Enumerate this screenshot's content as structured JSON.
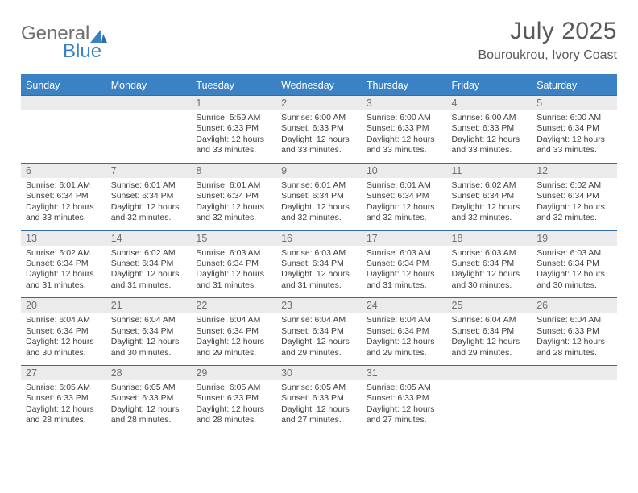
{
  "logo": {
    "part1": "General",
    "part2": "Blue"
  },
  "title": "July 2025",
  "location": "Bouroukrou, Ivory Coast",
  "colors": {
    "brand_blue": "#3b82c4",
    "rule_blue": "#2f6fa9",
    "header_bg": "#3b82c4",
    "header_fg": "#ffffff",
    "daynum_bg": "#ebebeb",
    "text_gray": "#595959",
    "body_text": "#3f3f3f",
    "logo_gray": "#6f6f6f"
  },
  "weekdays": [
    "Sunday",
    "Monday",
    "Tuesday",
    "Wednesday",
    "Thursday",
    "Friday",
    "Saturday"
  ],
  "weeks": [
    [
      {
        "empty": true
      },
      {
        "empty": true
      },
      {
        "day": "1",
        "sunrise": "Sunrise: 5:59 AM",
        "sunset": "Sunset: 6:33 PM",
        "daylight": "Daylight: 12 hours and 33 minutes."
      },
      {
        "day": "2",
        "sunrise": "Sunrise: 6:00 AM",
        "sunset": "Sunset: 6:33 PM",
        "daylight": "Daylight: 12 hours and 33 minutes."
      },
      {
        "day": "3",
        "sunrise": "Sunrise: 6:00 AM",
        "sunset": "Sunset: 6:33 PM",
        "daylight": "Daylight: 12 hours and 33 minutes."
      },
      {
        "day": "4",
        "sunrise": "Sunrise: 6:00 AM",
        "sunset": "Sunset: 6:33 PM",
        "daylight": "Daylight: 12 hours and 33 minutes."
      },
      {
        "day": "5",
        "sunrise": "Sunrise: 6:00 AM",
        "sunset": "Sunset: 6:34 PM",
        "daylight": "Daylight: 12 hours and 33 minutes."
      }
    ],
    [
      {
        "day": "6",
        "sunrise": "Sunrise: 6:01 AM",
        "sunset": "Sunset: 6:34 PM",
        "daylight": "Daylight: 12 hours and 33 minutes."
      },
      {
        "day": "7",
        "sunrise": "Sunrise: 6:01 AM",
        "sunset": "Sunset: 6:34 PM",
        "daylight": "Daylight: 12 hours and 32 minutes."
      },
      {
        "day": "8",
        "sunrise": "Sunrise: 6:01 AM",
        "sunset": "Sunset: 6:34 PM",
        "daylight": "Daylight: 12 hours and 32 minutes."
      },
      {
        "day": "9",
        "sunrise": "Sunrise: 6:01 AM",
        "sunset": "Sunset: 6:34 PM",
        "daylight": "Daylight: 12 hours and 32 minutes."
      },
      {
        "day": "10",
        "sunrise": "Sunrise: 6:01 AM",
        "sunset": "Sunset: 6:34 PM",
        "daylight": "Daylight: 12 hours and 32 minutes."
      },
      {
        "day": "11",
        "sunrise": "Sunrise: 6:02 AM",
        "sunset": "Sunset: 6:34 PM",
        "daylight": "Daylight: 12 hours and 32 minutes."
      },
      {
        "day": "12",
        "sunrise": "Sunrise: 6:02 AM",
        "sunset": "Sunset: 6:34 PM",
        "daylight": "Daylight: 12 hours and 32 minutes."
      }
    ],
    [
      {
        "day": "13",
        "sunrise": "Sunrise: 6:02 AM",
        "sunset": "Sunset: 6:34 PM",
        "daylight": "Daylight: 12 hours and 31 minutes."
      },
      {
        "day": "14",
        "sunrise": "Sunrise: 6:02 AM",
        "sunset": "Sunset: 6:34 PM",
        "daylight": "Daylight: 12 hours and 31 minutes."
      },
      {
        "day": "15",
        "sunrise": "Sunrise: 6:03 AM",
        "sunset": "Sunset: 6:34 PM",
        "daylight": "Daylight: 12 hours and 31 minutes."
      },
      {
        "day": "16",
        "sunrise": "Sunrise: 6:03 AM",
        "sunset": "Sunset: 6:34 PM",
        "daylight": "Daylight: 12 hours and 31 minutes."
      },
      {
        "day": "17",
        "sunrise": "Sunrise: 6:03 AM",
        "sunset": "Sunset: 6:34 PM",
        "daylight": "Daylight: 12 hours and 31 minutes."
      },
      {
        "day": "18",
        "sunrise": "Sunrise: 6:03 AM",
        "sunset": "Sunset: 6:34 PM",
        "daylight": "Daylight: 12 hours and 30 minutes."
      },
      {
        "day": "19",
        "sunrise": "Sunrise: 6:03 AM",
        "sunset": "Sunset: 6:34 PM",
        "daylight": "Daylight: 12 hours and 30 minutes."
      }
    ],
    [
      {
        "day": "20",
        "sunrise": "Sunrise: 6:04 AM",
        "sunset": "Sunset: 6:34 PM",
        "daylight": "Daylight: 12 hours and 30 minutes."
      },
      {
        "day": "21",
        "sunrise": "Sunrise: 6:04 AM",
        "sunset": "Sunset: 6:34 PM",
        "daylight": "Daylight: 12 hours and 30 minutes."
      },
      {
        "day": "22",
        "sunrise": "Sunrise: 6:04 AM",
        "sunset": "Sunset: 6:34 PM",
        "daylight": "Daylight: 12 hours and 29 minutes."
      },
      {
        "day": "23",
        "sunrise": "Sunrise: 6:04 AM",
        "sunset": "Sunset: 6:34 PM",
        "daylight": "Daylight: 12 hours and 29 minutes."
      },
      {
        "day": "24",
        "sunrise": "Sunrise: 6:04 AM",
        "sunset": "Sunset: 6:34 PM",
        "daylight": "Daylight: 12 hours and 29 minutes."
      },
      {
        "day": "25",
        "sunrise": "Sunrise: 6:04 AM",
        "sunset": "Sunset: 6:34 PM",
        "daylight": "Daylight: 12 hours and 29 minutes."
      },
      {
        "day": "26",
        "sunrise": "Sunrise: 6:04 AM",
        "sunset": "Sunset: 6:33 PM",
        "daylight": "Daylight: 12 hours and 28 minutes."
      }
    ],
    [
      {
        "day": "27",
        "sunrise": "Sunrise: 6:05 AM",
        "sunset": "Sunset: 6:33 PM",
        "daylight": "Daylight: 12 hours and 28 minutes."
      },
      {
        "day": "28",
        "sunrise": "Sunrise: 6:05 AM",
        "sunset": "Sunset: 6:33 PM",
        "daylight": "Daylight: 12 hours and 28 minutes."
      },
      {
        "day": "29",
        "sunrise": "Sunrise: 6:05 AM",
        "sunset": "Sunset: 6:33 PM",
        "daylight": "Daylight: 12 hours and 28 minutes."
      },
      {
        "day": "30",
        "sunrise": "Sunrise: 6:05 AM",
        "sunset": "Sunset: 6:33 PM",
        "daylight": "Daylight: 12 hours and 27 minutes."
      },
      {
        "day": "31",
        "sunrise": "Sunrise: 6:05 AM",
        "sunset": "Sunset: 6:33 PM",
        "daylight": "Daylight: 12 hours and 27 minutes."
      },
      {
        "empty": true
      },
      {
        "empty": true
      }
    ]
  ]
}
